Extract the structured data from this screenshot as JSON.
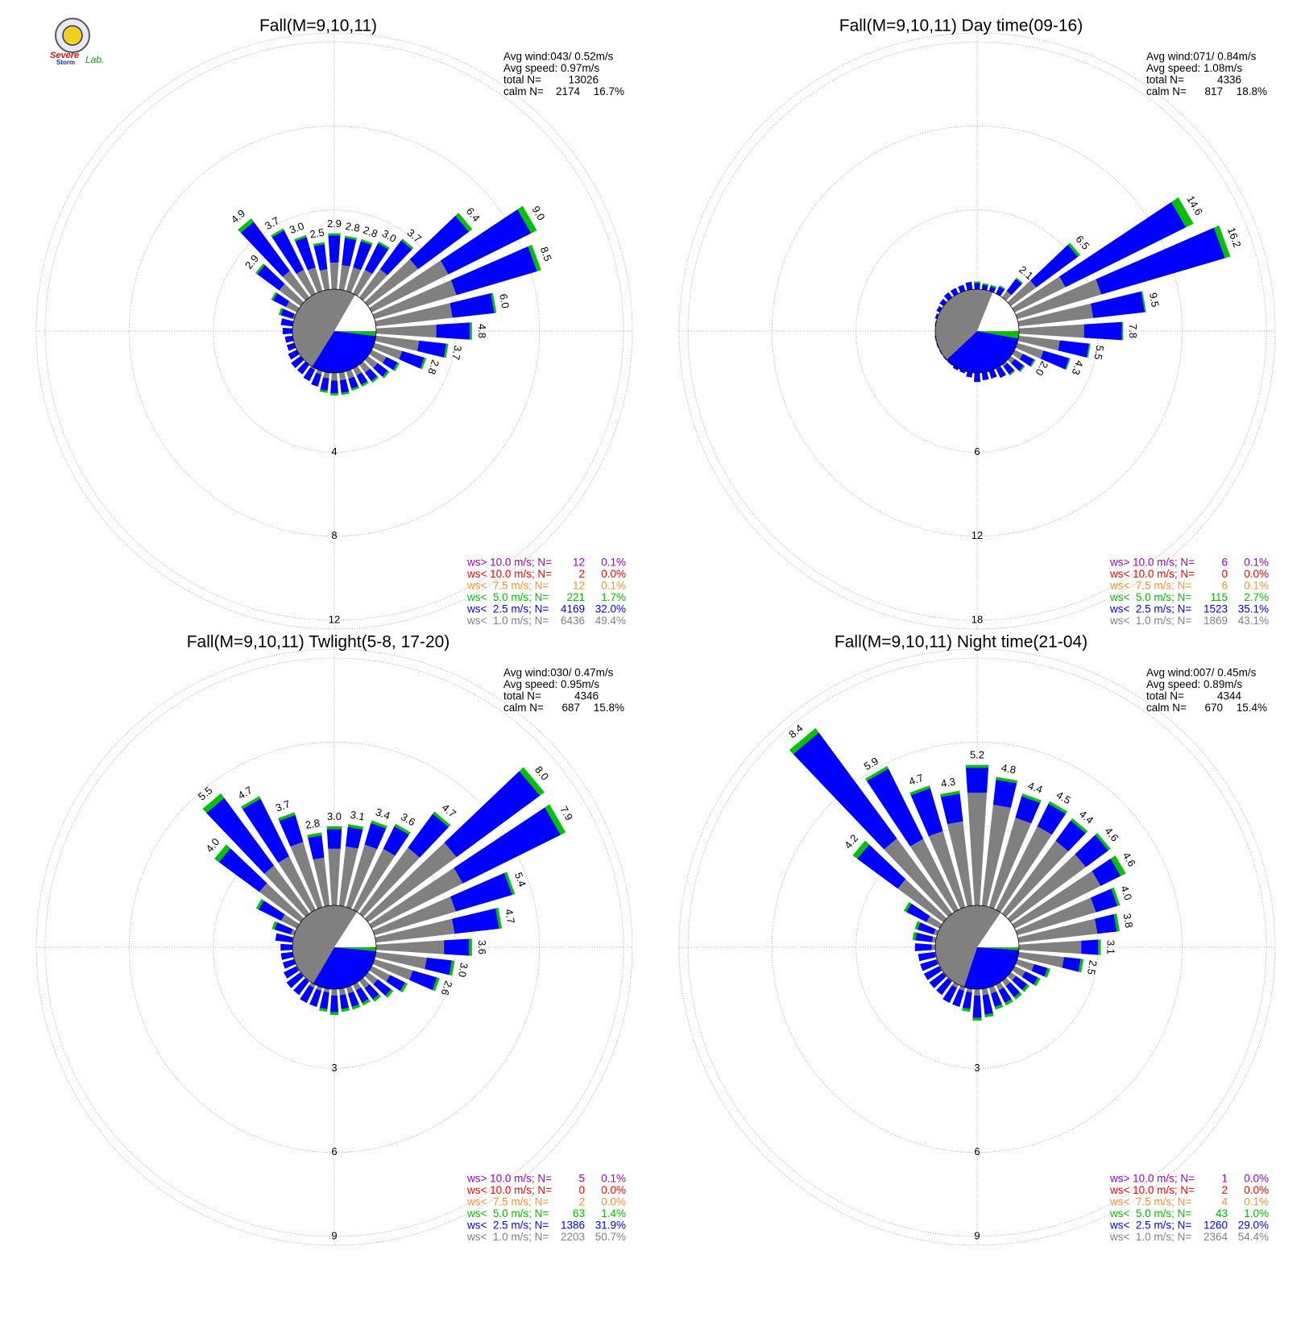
{
  "logo": {
    "top": "Severe",
    "bottom": "Storm",
    "right": "Lab."
  },
  "chart_data": [
    {
      "type": "windrose",
      "title": "Fall(M=9,10,11)",
      "avg_wind": "Avg wind:043/ 0.52m/s",
      "avg_speed": "Avg speed: 0.97m/s",
      "total_label": "total N=",
      "total_n": 13026,
      "calm_label": "calm N=",
      "calm_n": 2174,
      "calm_pct": 16.7,
      "calm_pct_label": "16.7%",
      "ylim": [
        0,
        12
      ],
      "yticks": [
        4,
        8,
        12
      ],
      "series": [
        {
          "color": "#808080",
          "values": [
            1.5,
            1.4,
            1.4,
            1.5,
            1.9,
            3.2,
            4.3,
            4.3,
            3.9,
            3.1,
            2.3,
            1.6,
            1.0,
            0.8,
            0.7,
            0.6,
            0.6,
            0.6,
            0.6,
            0.5,
            0.4,
            0.3,
            0.2,
            0.2,
            0.2,
            0.1,
            0.1,
            0.2,
            0.2,
            0.3,
            0.8,
            1.5,
            1.8,
            1.5,
            1.4,
            1.2
          ]
        },
        {
          "color": "#0000ff",
          "values": [
            1.3,
            1.3,
            1.3,
            1.4,
            1.7,
            3.0,
            4.4,
            4.0,
            2.0,
            1.6,
            1.3,
            1.1,
            0.6,
            0.6,
            0.5,
            0.5,
            0.5,
            0.6,
            0.6,
            0.6,
            0.6,
            0.6,
            0.6,
            0.6,
            0.5,
            0.5,
            0.5,
            0.5,
            0.6,
            0.6,
            0.7,
            1.3,
            2.9,
            2.1,
            1.5,
            1.2
          ]
        },
        {
          "color": "#00c000",
          "values": [
            0.1,
            0.1,
            0.1,
            0.1,
            0.1,
            0.2,
            0.3,
            0.2,
            0.1,
            0.1,
            0.1,
            0.1,
            0.1,
            0.1,
            0.1,
            0.1,
            0.1,
            0.1,
            0.1,
            0.1,
            0,
            0,
            0,
            0,
            0,
            0,
            0,
            0,
            0,
            0.1,
            0.1,
            0.1,
            0.2,
            0.1,
            0.1,
            0.1
          ]
        }
      ],
      "value_labels": [
        "2.9",
        "2.8",
        "2.8",
        "3.0",
        "3.7",
        "6.4",
        "9.0",
        "8.5",
        "6.0",
        "4.8",
        "3.7",
        "2.8",
        null,
        null,
        null,
        null,
        null,
        null,
        null,
        null,
        null,
        null,
        null,
        null,
        null,
        null,
        null,
        null,
        null,
        null,
        null,
        "2.9",
        "4.9",
        "3.7",
        "3.0",
        "2.5"
      ],
      "legend": [
        {
          "label": "ws> 10.0 m/s; N=",
          "n": 12,
          "pct": 0.1,
          "pct_label": "0.1%",
          "color": "#a000d0"
        },
        {
          "label": "ws< 10.0 m/s; N=",
          "n": 2,
          "pct": 0.0,
          "pct_label": "0.0%",
          "color": "#ff0000"
        },
        {
          "label": "ws<  7.5 m/s; N=",
          "n": 12,
          "pct": 0.1,
          "pct_label": "0.1%",
          "color": "#ff9030"
        },
        {
          "label": "ws<  5.0 m/s; N=",
          "n": 221,
          "pct": 1.7,
          "pct_label": "1.7%",
          "color": "#00c000"
        },
        {
          "label": "ws<  2.5 m/s; N=",
          "n": 4169,
          "pct": 32.0,
          "pct_label": "32.0%",
          "color": "#0000ff"
        },
        {
          "label": "ws<  1.0 m/s; N=",
          "n": 6436,
          "pct": 49.4,
          "pct_label": "49.4%",
          "color": "#808080"
        }
      ]
    },
    {
      "type": "windrose",
      "title": "Fall(M=9,10,11) Day time(09-16)",
      "avg_wind": "Avg wind:071/ 0.84m/s",
      "avg_speed": "Avg speed: 1.08m/s",
      "total_label": "total N=",
      "total_n": 4336,
      "calm_label": "calm N=",
      "calm_n": 817,
      "calm_pct": 18.8,
      "calm_pct_label": "18.8%",
      "ylim": [
        0,
        18
      ],
      "yticks": [
        6,
        12,
        18
      ],
      "series": [
        {
          "color": "#808080",
          "values": [
            0.3,
            0.3,
            0.3,
            0.3,
            0.9,
            2.6,
            4.4,
            6.6,
            5.7,
            5.0,
            3.3,
            2.3,
            1.0,
            0.7,
            0.5,
            0.4,
            0.3,
            0.3,
            0.3,
            0.2,
            0.1,
            0.1,
            0.1,
            0.1,
            0.1,
            0.1,
            0.1,
            0.1,
            0.1,
            0.1,
            0.2,
            0.2,
            0.2,
            0.2,
            0.2,
            0.3
          ]
        },
        {
          "color": "#0000ff",
          "values": [
            0.5,
            0.4,
            0.4,
            0.6,
            1.1,
            3.7,
            9.6,
            9.2,
            3.7,
            2.7,
            2.1,
            1.9,
            0.9,
            0.8,
            0.7,
            0.7,
            0.6,
            0.6,
            0.7,
            0.5,
            0.4,
            0.4,
            0.3,
            0.3,
            0.3,
            0.3,
            0.3,
            0.2,
            0.3,
            0.4,
            0.4,
            0.5,
            0.6,
            0.6,
            0.6,
            0.6
          ]
        },
        {
          "color": "#00c000",
          "values": [
            0.1,
            0.1,
            0.1,
            0.1,
            0.1,
            0.2,
            0.6,
            0.4,
            0.1,
            0.1,
            0.1,
            0.1,
            0.1,
            0.1,
            0.1,
            0,
            0,
            0,
            0,
            0,
            0,
            0,
            0,
            0,
            0,
            0,
            0,
            0,
            0,
            0,
            0,
            0,
            0,
            0,
            0,
            0
          ]
        }
      ],
      "value_labels": [
        null,
        null,
        null,
        null,
        "2.1",
        "6.5",
        "14.6",
        "16.2",
        "9.5",
        "7.8",
        "5.5",
        "4.3",
        "2.0",
        null,
        null,
        null,
        null,
        null,
        null,
        null,
        null,
        null,
        null,
        null,
        null,
        null,
        null,
        null,
        null,
        null,
        null,
        null,
        null,
        null,
        null,
        null
      ],
      "legend": [
        {
          "label": "ws> 10.0 m/s; N=",
          "n": 6,
          "pct": 0.1,
          "pct_label": "0.1%",
          "color": "#a000d0"
        },
        {
          "label": "ws< 10.0 m/s; N=",
          "n": 0,
          "pct": 0.0,
          "pct_label": "0.0%",
          "color": "#ff0000"
        },
        {
          "label": "ws<  7.5 m/s; N=",
          "n": 6,
          "pct": 0.1,
          "pct_label": "0.1%",
          "color": "#ff9030"
        },
        {
          "label": "ws<  5.0 m/s; N=",
          "n": 115,
          "pct": 2.7,
          "pct_label": "2.7%",
          "color": "#00c000"
        },
        {
          "label": "ws<  2.5 m/s; N=",
          "n": 1523,
          "pct": 35.1,
          "pct_label": "35.1%",
          "color": "#0000ff"
        },
        {
          "label": "ws<  1.0 m/s; N=",
          "n": 1869,
          "pct": 43.1,
          "pct_label": "43.1%",
          "color": "#808080"
        }
      ]
    },
    {
      "type": "windrose",
      "title": "Fall(M=9,10,11) Twlight(5-8, 17-20)",
      "avg_wind": "Avg wind:030/ 0.47m/s",
      "avg_speed": "Avg speed: 0.95m/s",
      "total_label": "total N=",
      "total_n": 4346,
      "calm_label": "calm N=",
      "calm_n": 687,
      "calm_pct": 15.8,
      "calm_pct_label": "15.8%",
      "ylim": [
        0,
        9
      ],
      "yticks": [
        3,
        6,
        9
      ],
      "series": [
        {
          "color": "#808080",
          "values": [
            2.2,
            2.3,
            2.5,
            2.6,
            3.1,
            4.1,
            3.8,
            3.2,
            3.0,
            2.6,
            2.0,
            1.6,
            0.9,
            0.6,
            0.5,
            0.4,
            0.4,
            0.4,
            0.4,
            0.3,
            0.3,
            0.3,
            0.2,
            0.2,
            0.2,
            0.1,
            0.1,
            0.1,
            0.2,
            0.3,
            0.8,
            2.0,
            2.3,
            2.3,
            2.6,
            1.9
          ]
        },
        {
          "color": "#0000ff",
          "values": [
            0.7,
            0.7,
            0.8,
            0.9,
            1.5,
            3.7,
            3.9,
            2.1,
            1.6,
            0.9,
            0.9,
            0.9,
            0.6,
            0.6,
            0.5,
            0.5,
            0.5,
            0.5,
            0.6,
            0.6,
            0.6,
            0.6,
            0.6,
            0.6,
            0.5,
            0.5,
            0.5,
            0.5,
            0.6,
            0.6,
            0.9,
            1.8,
            3.0,
            2.3,
            1.0,
            0.8
          ]
        },
        {
          "color": "#00c000",
          "values": [
            0.1,
            0.1,
            0.1,
            0.1,
            0.1,
            0.2,
            0.2,
            0.1,
            0.1,
            0.1,
            0.1,
            0.1,
            0.1,
            0.1,
            0.1,
            0.1,
            0.1,
            0.1,
            0.1,
            0.1,
            0,
            0,
            0,
            0,
            0,
            0,
            0,
            0,
            0,
            0.1,
            0.1,
            0.2,
            0.2,
            0.1,
            0.1,
            0.1
          ]
        }
      ],
      "value_labels": [
        "3.0",
        "3.1",
        "3.4",
        "3.6",
        "4.7",
        "8.0",
        "7.9",
        "5.4",
        "4.7",
        "3.6",
        "3.0",
        "2.6",
        null,
        null,
        null,
        null,
        null,
        null,
        null,
        null,
        null,
        null,
        null,
        null,
        null,
        null,
        null,
        null,
        null,
        null,
        null,
        "4.0",
        "5.5",
        "4.7",
        "3.7",
        "2.8"
      ],
      "legend": [
        {
          "label": "ws> 10.0 m/s; N=",
          "n": 5,
          "pct": 0.1,
          "pct_label": "0.1%",
          "color": "#a000d0"
        },
        {
          "label": "ws< 10.0 m/s; N=",
          "n": 0,
          "pct": 0.0,
          "pct_label": "0.0%",
          "color": "#ff0000"
        },
        {
          "label": "ws<  7.5 m/s; N=",
          "n": 2,
          "pct": 0.0,
          "pct_label": "0.0%",
          "color": "#ff9030"
        },
        {
          "label": "ws<  5.0 m/s; N=",
          "n": 63,
          "pct": 1.4,
          "pct_label": "1.4%",
          "color": "#00c000"
        },
        {
          "label": "ws<  2.5 m/s; N=",
          "n": 1386,
          "pct": 31.9,
          "pct_label": "31.9%",
          "color": "#0000ff"
        },
        {
          "label": "ws<  1.0 m/s; N=",
          "n": 2203,
          "pct": 50.7,
          "pct_label": "50.7%",
          "color": "#808080"
        }
      ]
    },
    {
      "type": "windrose",
      "title": "Fall(M=9,10,11) Night time(21-04)",
      "avg_wind": "Avg wind:007/ 0.45m/s",
      "avg_speed": "Avg speed: 0.89m/s",
      "total_label": "total N=",
      "total_n": 4344,
      "calm_label": "calm N=",
      "calm_n": 670,
      "calm_pct": 15.4,
      "calm_pct_label": "15.4%",
      "ylim": [
        0,
        9
      ],
      "yticks": [
        3,
        6,
        9
      ],
      "series": [
        {
          "color": "#808080",
          "values": [
            4.2,
            3.8,
            3.5,
            3.5,
            3.4,
            3.5,
            3.6,
            3.1,
            3.0,
            2.4,
            1.8,
            0.8,
            0.6,
            0.4,
            0.4,
            0.4,
            0.4,
            0.4,
            0.4,
            0.3,
            0.3,
            0.3,
            0.2,
            0.2,
            0.2,
            0.2,
            0.2,
            0.3,
            0.3,
            0.3,
            0.7,
            2.2,
            3.5,
            3.0,
            3.0,
            3.2
          ]
        },
        {
          "color": "#0000ff",
          "values": [
            0.9,
            0.9,
            0.8,
            0.9,
            0.9,
            1.0,
            0.8,
            0.8,
            0.7,
            0.6,
            0.6,
            0.5,
            0.5,
            0.5,
            0.5,
            0.5,
            0.5,
            0.7,
            0.8,
            0.6,
            0.6,
            0.6,
            0.6,
            0.6,
            0.6,
            0.6,
            0.6,
            0.6,
            0.6,
            0.6,
            0.8,
            1.8,
            4.7,
            2.8,
            1.6,
            1.0
          ]
        },
        {
          "color": "#00c000",
          "values": [
            0.1,
            0.1,
            0.1,
            0.1,
            0.1,
            0.1,
            0.2,
            0.1,
            0.1,
            0.1,
            0.1,
            0.1,
            0.1,
            0.1,
            0.1,
            0.1,
            0.1,
            0.1,
            0.1,
            0.1,
            0,
            0,
            0,
            0,
            0,
            0,
            0,
            0,
            0.1,
            0.1,
            0.1,
            0.2,
            0.2,
            0.1,
            0.1,
            0.1
          ]
        }
      ],
      "value_labels": [
        "5.2",
        "4.8",
        "4.4",
        "4.5",
        "4.4",
        "4.6",
        "4.6",
        "4.0",
        "3.8",
        "3.1",
        "2.5",
        null,
        null,
        null,
        null,
        null,
        null,
        null,
        null,
        null,
        null,
        null,
        null,
        null,
        null,
        null,
        null,
        null,
        null,
        null,
        null,
        "4.2",
        "8.4",
        "5.9",
        "4.7",
        "4.3"
      ],
      "legend": [
        {
          "label": "ws> 10.0 m/s; N=",
          "n": 1,
          "pct": 0.0,
          "pct_label": "0.0%",
          "color": "#a000d0"
        },
        {
          "label": "ws< 10.0 m/s; N=",
          "n": 2,
          "pct": 0.0,
          "pct_label": "0.0%",
          "color": "#ff0000"
        },
        {
          "label": "ws<  7.5 m/s; N=",
          "n": 4,
          "pct": 0.1,
          "pct_label": "0.1%",
          "color": "#ff9030"
        },
        {
          "label": "ws<  5.0 m/s; N=",
          "n": 43,
          "pct": 1.0,
          "pct_label": "1.0%",
          "color": "#00c000"
        },
        {
          "label": "ws<  2.5 m/s; N=",
          "n": 1260,
          "pct": 29.0,
          "pct_label": "29.0%",
          "color": "#0000ff"
        },
        {
          "label": "ws<  1.0 m/s; N=",
          "n": 2364,
          "pct": 54.4,
          "pct_label": "54.4%",
          "color": "#808080"
        }
      ]
    }
  ]
}
